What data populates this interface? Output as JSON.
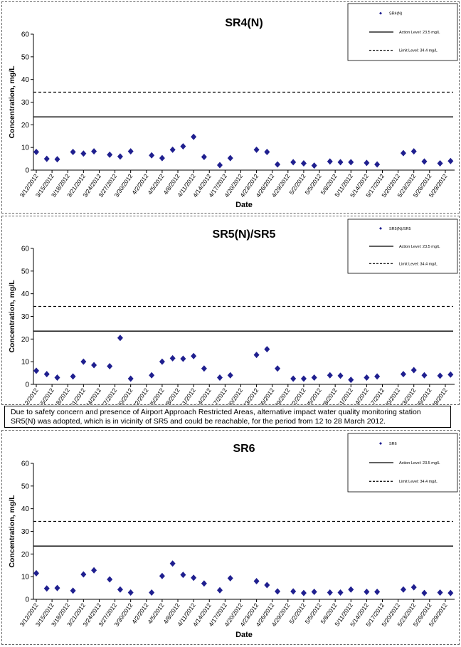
{
  "dates": [
    "3/12/2012",
    "3/15/2012",
    "3/18/2012",
    "3/21/2012",
    "3/24/2012",
    "3/27/2012",
    "3/30/2012",
    "4/2/2012",
    "4/5/2012",
    "4/8/2012",
    "4/11/2012",
    "4/14/2012",
    "4/17/2012",
    "4/20/2012",
    "4/23/2012",
    "4/26/2012",
    "4/29/2012",
    "5/2/2012",
    "5/5/2012",
    "5/8/2012",
    "5/11/2012",
    "5/14/2012",
    "5/17/2012",
    "5/20/2012",
    "5/23/2012",
    "5/26/2012",
    "5/29/2012"
  ],
  "note": "Due to safety concern and presence of Airport Approach Restricted Areas, alternative impact water quality monitoring station SR5(N) was adopted, which is in vicinity of SR5 and could be reachable, for the period from 12 to 28 March 2012.",
  "chart_data": [
    {
      "type": "scatter",
      "title": "SR4(N)",
      "xlabel": "Date",
      "ylabel": "Concentration, mg/L",
      "ylim": [
        0,
        60
      ],
      "yticks": [
        0,
        10,
        20,
        30,
        40,
        50,
        60
      ],
      "grid": false,
      "legend_position": "top-right",
      "series": [
        {
          "name": "SR4(N)",
          "marker": "diamond",
          "color": "#1f1f8f",
          "x": [
            "3/12/2012",
            "3/14/2012",
            "3/16/2012",
            "3/19/2012",
            "3/21/2012",
            "3/23/2012",
            "3/26/2012",
            "3/28/2012",
            "3/30/2012",
            "4/3/2012",
            "4/5/2012",
            "4/7/2012",
            "4/9/2012",
            "4/11/2012",
            "4/13/2012",
            "4/16/2012",
            "4/18/2012",
            "4/23/2012",
            "4/25/2012",
            "4/27/2012",
            "4/30/2012",
            "5/2/2012",
            "5/4/2012",
            "5/7/2012",
            "5/9/2012",
            "5/11/2012",
            "5/14/2012",
            "5/16/2012",
            "5/21/2012",
            "5/23/2012",
            "5/25/2012",
            "5/28/2012",
            "5/30/2012"
          ],
          "values": [
            8.0,
            5.0,
            4.8,
            8.0,
            7.3,
            8.3,
            6.8,
            6.0,
            8.3,
            6.5,
            5.3,
            9.0,
            10.5,
            14.7,
            5.8,
            2.2,
            5.3,
            9.0,
            8.0,
            2.5,
            3.5,
            3.0,
            2.0,
            3.8,
            3.5,
            3.5,
            3.2,
            2.5,
            7.5,
            8.3,
            3.8,
            3.0,
            4.0
          ]
        },
        {
          "name": "Action Level: 23.5 mg/L",
          "line": "solid",
          "values": [
            23.5
          ]
        },
        {
          "name": "Limit Level: 34.4 mg/L",
          "line": "dashed",
          "values": [
            34.4
          ]
        }
      ]
    },
    {
      "type": "scatter",
      "title": "SR5(N)/SR5",
      "xlabel": "",
      "ylabel": "Concentration, mg/L",
      "ylim": [
        0,
        60
      ],
      "yticks": [
        0,
        10,
        20,
        30,
        40,
        50,
        60
      ],
      "grid": false,
      "legend_position": "top-right",
      "series": [
        {
          "name": "SR5(N)/SR5",
          "marker": "diamond",
          "color": "#1f1f8f",
          "x": [
            "3/12/2012",
            "3/14/2012",
            "3/16/2012",
            "3/19/2012",
            "3/21/2012",
            "3/23/2012",
            "3/26/2012",
            "3/28/2012",
            "3/30/2012",
            "4/3/2012",
            "4/5/2012",
            "4/7/2012",
            "4/9/2012",
            "4/11/2012",
            "4/13/2012",
            "4/16/2012",
            "4/18/2012",
            "4/23/2012",
            "4/25/2012",
            "4/27/2012",
            "4/30/2012",
            "5/2/2012",
            "5/4/2012",
            "5/7/2012",
            "5/9/2012",
            "5/11/2012",
            "5/14/2012",
            "5/16/2012",
            "5/21/2012",
            "5/23/2012",
            "5/25/2012",
            "5/28/2012",
            "5/30/2012"
          ],
          "values": [
            6.0,
            4.5,
            3.0,
            3.5,
            10.0,
            8.5,
            8.0,
            20.5,
            2.5,
            4.0,
            10.0,
            11.5,
            11.3,
            12.5,
            7.0,
            3.0,
            4.0,
            13.0,
            15.5,
            7.0,
            2.5,
            2.5,
            3.0,
            4.0,
            3.8,
            2.0,
            3.0,
            3.5,
            4.5,
            6.3,
            4.0,
            3.8,
            4.3
          ]
        },
        {
          "name": "Action Level: 23.5 mg/L",
          "line": "solid",
          "values": [
            23.5
          ]
        },
        {
          "name": "Limit Level: 34.4 mg/L",
          "line": "dashed",
          "values": [
            34.4
          ]
        }
      ]
    },
    {
      "type": "scatter",
      "title": "SR6",
      "xlabel": "Date",
      "ylabel": "Concentration, mg/L",
      "ylim": [
        0,
        60
      ],
      "yticks": [
        0,
        10,
        20,
        30,
        40,
        50,
        60
      ],
      "grid": false,
      "legend_position": "top-right",
      "series": [
        {
          "name": "SR6",
          "marker": "diamond",
          "color": "#1f1f8f",
          "x": [
            "3/12/2012",
            "3/14/2012",
            "3/16/2012",
            "3/19/2012",
            "3/21/2012",
            "3/23/2012",
            "3/26/2012",
            "3/28/2012",
            "3/30/2012",
            "4/3/2012",
            "4/5/2012",
            "4/7/2012",
            "4/9/2012",
            "4/11/2012",
            "4/13/2012",
            "4/16/2012",
            "4/18/2012",
            "4/23/2012",
            "4/25/2012",
            "4/27/2012",
            "4/30/2012",
            "5/2/2012",
            "5/4/2012",
            "5/7/2012",
            "5/9/2012",
            "5/11/2012",
            "5/14/2012",
            "5/16/2012",
            "5/21/2012",
            "5/23/2012",
            "5/25/2012",
            "5/28/2012",
            "5/30/2012"
          ],
          "values": [
            11.5,
            4.8,
            5.0,
            3.8,
            11.0,
            12.8,
            8.8,
            4.3,
            3.0,
            3.0,
            10.3,
            15.8,
            10.8,
            9.5,
            7.0,
            4.0,
            9.3,
            8.0,
            6.3,
            3.5,
            3.5,
            2.8,
            3.3,
            3.0,
            3.0,
            4.3,
            3.3,
            3.3,
            4.3,
            5.3,
            2.8,
            3.0,
            2.8
          ]
        },
        {
          "name": "Action Level: 23.5 mg/L",
          "line": "solid",
          "values": [
            23.5
          ]
        },
        {
          "name": "Limit Level: 34.4 mg/L",
          "line": "dashed",
          "values": [
            34.4
          ]
        }
      ]
    }
  ]
}
